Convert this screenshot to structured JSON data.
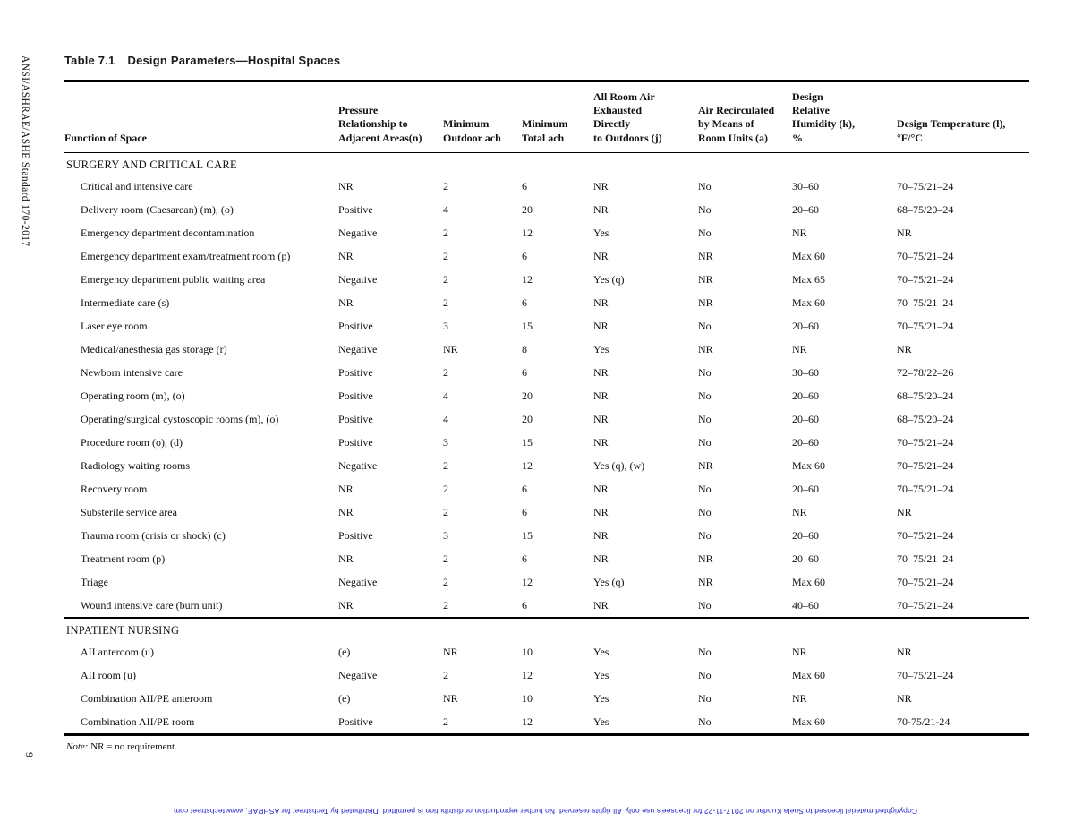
{
  "page": {
    "title_number": "Table 7.1",
    "title_text": "Design Parameters—Hospital Spaces",
    "side_label": "ANSI/ASHRAE/ASHE Standard 170-2017",
    "page_number": "9",
    "note_label": "Note:",
    "note_text": " NR = no requirement.",
    "copyright_notice": "Copyrighted material licensed to Suela Kundar on 2017-11-22 for licensee's use only.  All rights reserved. No further reproduction or distribution is permitted. Distributed by Techstreet for ASHRAE, www.techstreet.com",
    "copyright_color": "#2222cc",
    "rule_color": "#000000"
  },
  "table": {
    "columns": [
      "Function of Space",
      "Pressure\nRelationship to\nAdjacent Areas(n)",
      "Minimum\nOutdoor ach",
      "Minimum\nTotal ach",
      "All Room Air\nExhausted\nDirectly\nto Outdoors (j)",
      "Air Recirculated\nby Means of\nRoom Units (a)",
      "Design\nRelative\nHumidity (k),\n%",
      "Design Temperature (l),\n°F/°C"
    ],
    "sections": [
      {
        "heading": "SURGERY AND CRITICAL CARE",
        "rows": [
          [
            "Critical and intensive care",
            "NR",
            "2",
            "6",
            "NR",
            "No",
            "30–60",
            "70–75/21–24"
          ],
          [
            "Delivery room (Caesarean) (m), (o)",
            "Positive",
            "4",
            "20",
            "NR",
            "No",
            "20–60",
            "68–75/20–24"
          ],
          [
            "Emergency department decontamination",
            "Negative",
            "2",
            "12",
            "Yes",
            "No",
            "NR",
            "NR"
          ],
          [
            "Emergency department exam/treatment room (p)",
            "NR",
            "2",
            "6",
            "NR",
            "NR",
            "Max 60",
            "70–75/21–24"
          ],
          [
            "Emergency department public waiting area",
            "Negative",
            "2",
            "12",
            "Yes (q)",
            "NR",
            "Max 65",
            "70–75/21–24"
          ],
          [
            "Intermediate care (s)",
            "NR",
            "2",
            "6",
            "NR",
            "NR",
            "Max 60",
            "70–75/21–24"
          ],
          [
            "Laser eye room",
            "Positive",
            "3",
            "15",
            "NR",
            "No",
            "20–60",
            "70–75/21–24"
          ],
          [
            "Medical/anesthesia gas storage (r)",
            "Negative",
            "NR",
            "8",
            "Yes",
            "NR",
            "NR",
            "NR"
          ],
          [
            "Newborn intensive care",
            "Positive",
            "2",
            "6",
            "NR",
            "No",
            "30–60",
            "72–78/22–26"
          ],
          [
            "Operating room (m), (o)",
            "Positive",
            "4",
            "20",
            "NR",
            "No",
            "20–60",
            "68–75/20–24"
          ],
          [
            "Operating/surgical cystoscopic rooms (m), (o)",
            "Positive",
            "4",
            "20",
            "NR",
            "No",
            "20–60",
            "68–75/20–24"
          ],
          [
            "Procedure room (o), (d)",
            "Positive",
            "3",
            "15",
            "NR",
            "No",
            "20–60",
            "70–75/21–24"
          ],
          [
            "Radiology waiting rooms",
            "Negative",
            "2",
            "12",
            "Yes (q), (w)",
            "NR",
            "Max 60",
            "70–75/21–24"
          ],
          [
            "Recovery room",
            "NR",
            "2",
            "6",
            "NR",
            "No",
            "20–60",
            "70–75/21–24"
          ],
          [
            "Substerile service area",
            "NR",
            "2",
            "6",
            "NR",
            "No",
            "NR",
            "NR"
          ],
          [
            "Trauma room (crisis or shock) (c)",
            "Positive",
            "3",
            "15",
            "NR",
            "No",
            "20–60",
            "70–75/21–24"
          ],
          [
            "Treatment room (p)",
            "NR",
            "2",
            "6",
            "NR",
            "NR",
            "20–60",
            "70–75/21–24"
          ],
          [
            "Triage",
            "Negative",
            "2",
            "12",
            "Yes (q)",
            "NR",
            "Max 60",
            "70–75/21–24"
          ],
          [
            "Wound intensive care (burn unit)",
            "NR",
            "2",
            "6",
            "NR",
            "No",
            "40–60",
            "70–75/21–24"
          ]
        ]
      },
      {
        "heading": "INPATIENT NURSING",
        "rows": [
          [
            "AII anteroom (u)",
            "(e)",
            "NR",
            "10",
            "Yes",
            "No",
            "NR",
            "NR"
          ],
          [
            "AII room (u)",
            "Negative",
            "2",
            "12",
            "Yes",
            "No",
            "Max 60",
            "70–75/21–24"
          ],
          [
            "Combination AII/PE anteroom",
            "(e)",
            "NR",
            "10",
            "Yes",
            "No",
            "NR",
            "NR"
          ],
          [
            "Combination AII/PE room",
            "Positive",
            "2",
            "12",
            "Yes",
            "No",
            "Max 60",
            "70-75/21-24"
          ]
        ]
      }
    ]
  }
}
